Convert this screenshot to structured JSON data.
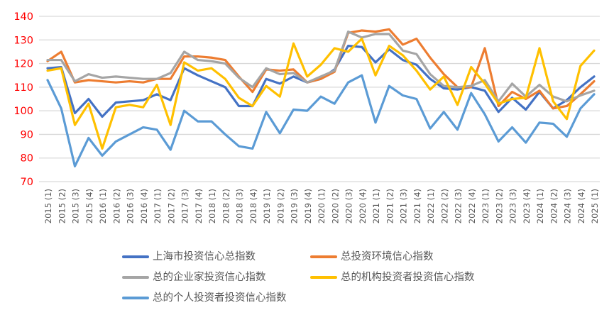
{
  "chart_data": {
    "type": "line",
    "title": "",
    "xlabel": "",
    "ylabel": "",
    "ylim": [
      70,
      140
    ],
    "ytick_step": 10,
    "grid": true,
    "legend_position": "bottom",
    "axis_style": {
      "y_tick_color": "#FF0000",
      "x_tick_color": "#595959",
      "gridline_color": "#D9D9D9",
      "legend_text_color": "#595959"
    },
    "categories": [
      "2015 (1)",
      "2015 (2)",
      "2015 (3)",
      "2015 (4)",
      "2016 (1)",
      "2016 (2)",
      "2016 (3)",
      "2016 (4)",
      "2017 (1)",
      "2017 (2)",
      "2017 (3)",
      "2017 (4)",
      "2018 (1)",
      "2018 (2)",
      "2018 (3)",
      "2018 (4)",
      "2019 (1)",
      "2019 (2)",
      "2019 (3)",
      "2019 (4)",
      "2020 (1)",
      "2020 (2)",
      "2020 (3)",
      "2020 (4)",
      "2021 (1)",
      "2021 (2)",
      "2021 (3)",
      "2021 (4)",
      "2022 (1)",
      "2022 (2)",
      "2022 (3)",
      "2022 (4)",
      "2023 (1)",
      "2023 (2)",
      "2023 (3)",
      "2023 (4)",
      "2024 (1)",
      "2024 (2)",
      "2024 (3)",
      "2024 (4)",
      "2025 (1)"
    ],
    "series": [
      {
        "name": "上海市投资信心总指数",
        "color": "#4472C4",
        "values": [
          118,
          118.5,
          99,
          105,
          97.5,
          103.5,
          104,
          104.5,
          107,
          104.5,
          118,
          115,
          112.5,
          110,
          102,
          102,
          113.5,
          111.5,
          114.5,
          112,
          113.5,
          117.5,
          127.5,
          127,
          120.5,
          126,
          121.5,
          119.5,
          113.5,
          109.5,
          109,
          110,
          108.5,
          99.5,
          105.5,
          100.5,
          108,
          101,
          104.5,
          110,
          114.5
        ]
      },
      {
        "name": "总投资环境信心指数",
        "color": "#ED7D31",
        "values": [
          121,
          125,
          112,
          113,
          112.5,
          112,
          112.5,
          112,
          113.5,
          113.5,
          123,
          123,
          122.5,
          121.5,
          114.5,
          108,
          117.5,
          117,
          117.5,
          112,
          113.5,
          116.5,
          133,
          134,
          133.5,
          134.5,
          128,
          130.5,
          122.5,
          115.5,
          110,
          110,
          126.5,
          102,
          108,
          105,
          108.5,
          101,
          102,
          107,
          112.5
        ]
      },
      {
        "name": "总的企业家投资信心指数",
        "color": "#A5A5A5",
        "values": [
          121.5,
          121.5,
          112.5,
          115.5,
          114,
          114.5,
          114,
          113.5,
          113.5,
          116,
          125,
          121.5,
          121,
          120,
          114,
          110,
          118,
          115.5,
          116,
          112,
          114.5,
          117,
          133.5,
          131,
          132.5,
          132.5,
          125.5,
          124,
          115.5,
          110.5,
          110,
          110.5,
          113,
          104,
          111.5,
          106,
          111,
          106,
          104,
          106.5,
          108.5
        ]
      },
      {
        "name": "总的机构投资者投资信心指数",
        "color": "#FFC000",
        "values": [
          117,
          118,
          94,
          103,
          84,
          101.5,
          102.5,
          101.5,
          111,
          94,
          120.5,
          117,
          118,
          113.5,
          105.5,
          102,
          110.5,
          106,
          128.5,
          114.5,
          119.5,
          126.5,
          125,
          130.5,
          115,
          127.5,
          123.5,
          117,
          109,
          114.5,
          102.5,
          118.5,
          111.5,
          103,
          105,
          105.5,
          126.5,
          104,
          96.5,
          119,
          125.5
        ]
      },
      {
        "name": "总的个人投资者投资信心指数",
        "color": "#5B9BD5",
        "values": [
          113,
          101,
          76.5,
          88.5,
          81,
          87,
          90,
          93,
          92,
          83.5,
          100,
          95.5,
          95.5,
          90,
          85,
          84,
          99.5,
          90.5,
          100.5,
          100,
          106,
          103,
          112,
          115,
          95,
          110.5,
          106.5,
          105,
          92.5,
          99.5,
          92,
          107.5,
          98.5,
          87,
          93,
          86.5,
          95,
          94.5,
          89,
          101,
          107
        ]
      }
    ],
    "legend_rows": [
      [
        0,
        1
      ],
      [
        2,
        3
      ],
      [
        4
      ]
    ]
  }
}
